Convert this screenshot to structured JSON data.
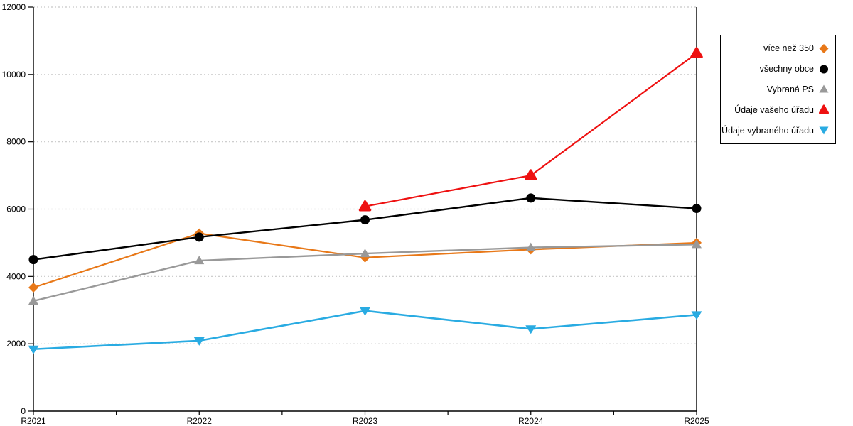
{
  "chart_data": {
    "type": "line",
    "title": "",
    "xlabel": "",
    "ylabel": "",
    "x_categories": [
      "R2021",
      "R2022",
      "R2023",
      "R2024",
      "R2025"
    ],
    "ylim": [
      0,
      12000
    ],
    "yticks": [
      0,
      2000,
      4000,
      6000,
      8000,
      10000,
      12000
    ],
    "grid": "horizontal-dotted",
    "grid_color": "#c8c8c8",
    "axis_color": "#000000",
    "legend_position": "outside-top-right",
    "series": [
      {
        "name": "více než 350",
        "color": "#e87818",
        "marker": "diamond",
        "values": [
          3670,
          5280,
          4560,
          4800,
          5000
        ]
      },
      {
        "name": "všechny obce",
        "color": "#000000",
        "marker": "circle",
        "values": [
          4500,
          5170,
          5680,
          6330,
          6020
        ]
      },
      {
        "name": "Vybraná PS",
        "color": "#999999",
        "marker": "triangle-up",
        "values": [
          3270,
          4470,
          4680,
          4860,
          4950
        ]
      },
      {
        "name": "Údaje vašeho úřadu",
        "color": "#ee1111",
        "marker": "triangle-up-round",
        "values": [
          null,
          null,
          6080,
          7000,
          10630
        ]
      },
      {
        "name": "Údaje vybraného úřadu",
        "color": "#29abe2",
        "marker": "triangle-down",
        "values": [
          1840,
          2090,
          2980,
          2440,
          2860
        ]
      }
    ]
  }
}
